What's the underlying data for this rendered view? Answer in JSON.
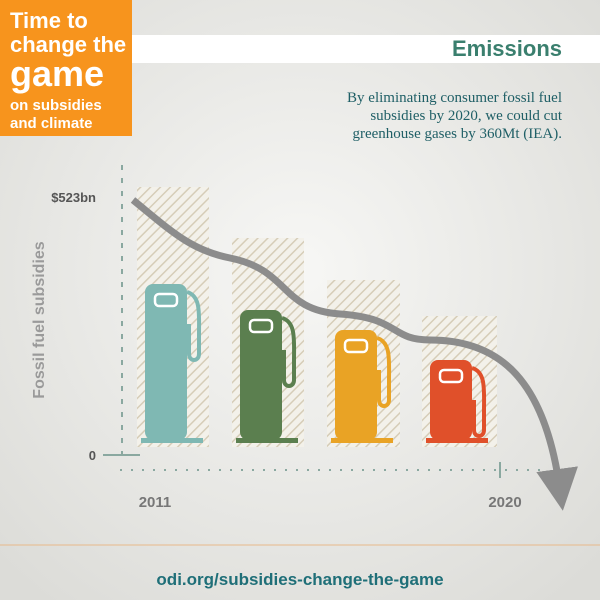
{
  "header": {
    "badge": [
      "Time to",
      "change the",
      "game",
      "on subsidies",
      "and climate"
    ],
    "title": "Emissions"
  },
  "description": [
    "By eliminating consumer fossil fuel",
    "subsidies by 2020, we could cut",
    "greenhouse gases by 360Mt (IEA)."
  ],
  "graphic": {
    "y_axis_title": "Fossil fuel subsidies",
    "y_top_label": "$523bn",
    "y_bottom_label": "0",
    "x_start_label": "2011",
    "x_end_label": "2020"
  },
  "footer": {
    "url": "odi.org/subsidies-change-the-game"
  }
}
